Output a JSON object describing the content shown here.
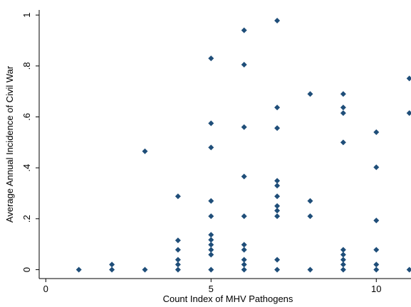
{
  "chart_data": {
    "type": "scatter",
    "x_label": "Count Index of MHV Pathogens",
    "y_label": "Average Annual Incidence of Civil War",
    "xlim": [
      -0.2,
      11.05
    ],
    "ylim": [
      -0.035,
      1.02
    ],
    "xticks": [
      0,
      5,
      10
    ],
    "yticks": [
      0,
      {
        "value": 0.2,
        "label": ".2"
      },
      {
        "value": 0.4,
        "label": ".4"
      },
      {
        "value": 0.6,
        "label": ".6"
      },
      {
        "value": 0.8,
        "label": ".8"
      },
      1
    ],
    "grid": false,
    "color": "#1f4e79",
    "x": [
      1,
      2,
      2,
      3,
      3,
      4,
      4,
      4,
      4,
      4,
      4,
      5,
      5,
      5,
      5,
      5,
      5,
      5,
      5,
      5,
      5,
      5,
      6,
      6,
      6,
      6,
      6,
      6,
      6,
      6,
      6,
      6,
      7,
      7,
      7,
      7,
      7,
      7,
      7,
      7,
      7,
      7,
      7,
      8,
      8,
      8,
      8,
      9,
      9,
      9,
      9,
      9,
      9,
      9,
      9,
      9,
      10,
      10,
      10,
      10,
      10,
      10,
      11,
      11,
      11
    ],
    "values": [
      0,
      0.02,
      0,
      0.465,
      0,
      0.288,
      0.115,
      0.078,
      0.039,
      0.02,
      0,
      0.83,
      0.575,
      0.48,
      0.27,
      0.21,
      0.137,
      0.117,
      0.098,
      0.078,
      0.059,
      0,
      0.94,
      0.805,
      0.56,
      0.366,
      0.21,
      0.098,
      0.078,
      0.039,
      0.02,
      0,
      0.978,
      0.637,
      0.556,
      0.349,
      0.33,
      0.288,
      0.25,
      0.232,
      0.21,
      0.039,
      0,
      0.69,
      0.27,
      0.21,
      0,
      0.69,
      0.637,
      0.615,
      0.5,
      0.078,
      0.059,
      0.039,
      0.02,
      0,
      0.54,
      0.402,
      0.193,
      0.078,
      0.02,
      0,
      0.751,
      0.615,
      0
    ]
  }
}
